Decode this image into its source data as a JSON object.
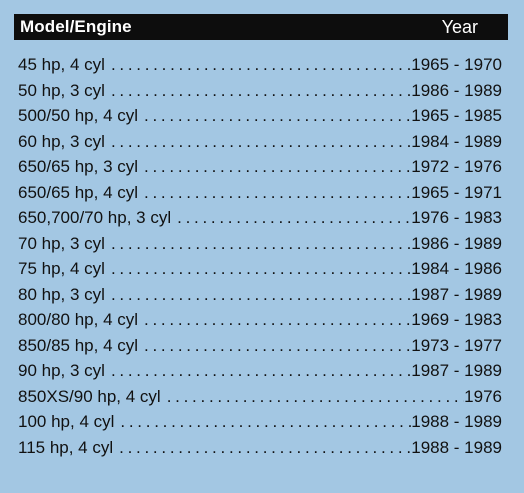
{
  "header": {
    "model_label": "Model/Engine",
    "year_label": "Year"
  },
  "rows": [
    {
      "model": "45 hp, 4 cyl",
      "year": "1965 - 1970"
    },
    {
      "model": "50 hp, 3 cyl",
      "year": "1986 - 1989"
    },
    {
      "model": "500/50 hp, 4 cyl",
      "year": "1965 - 1985"
    },
    {
      "model": "60 hp, 3 cyl",
      "year": "1984 - 1989"
    },
    {
      "model": "650/65 hp, 3 cyl",
      "year": "1972 - 1976"
    },
    {
      "model": "650/65 hp, 4 cyl",
      "year": "1965 - 1971"
    },
    {
      "model": "650,700/70 hp, 3 cyl",
      "year": "1976 - 1983"
    },
    {
      "model": "70 hp, 3 cyl",
      "year": "1986 - 1989"
    },
    {
      "model": "75 hp, 4 cyl",
      "year": "1984 - 1986"
    },
    {
      "model": "80 hp, 3 cyl",
      "year": "1987 - 1989"
    },
    {
      "model": "800/80 hp, 4 cyl",
      "year": "1969 - 1983"
    },
    {
      "model": "850/85 hp, 4 cyl",
      "year": "1973 - 1977"
    },
    {
      "model": "90 hp, 3 cyl",
      "year": "1987 - 1989"
    },
    {
      "model": "850XS/90 hp, 4 cyl",
      "year": "1976"
    },
    {
      "model": "100 hp, 4 cyl",
      "year": "1988 - 1989"
    },
    {
      "model": "115 hp, 4 cyl",
      "year": "1988 - 1989"
    }
  ]
}
